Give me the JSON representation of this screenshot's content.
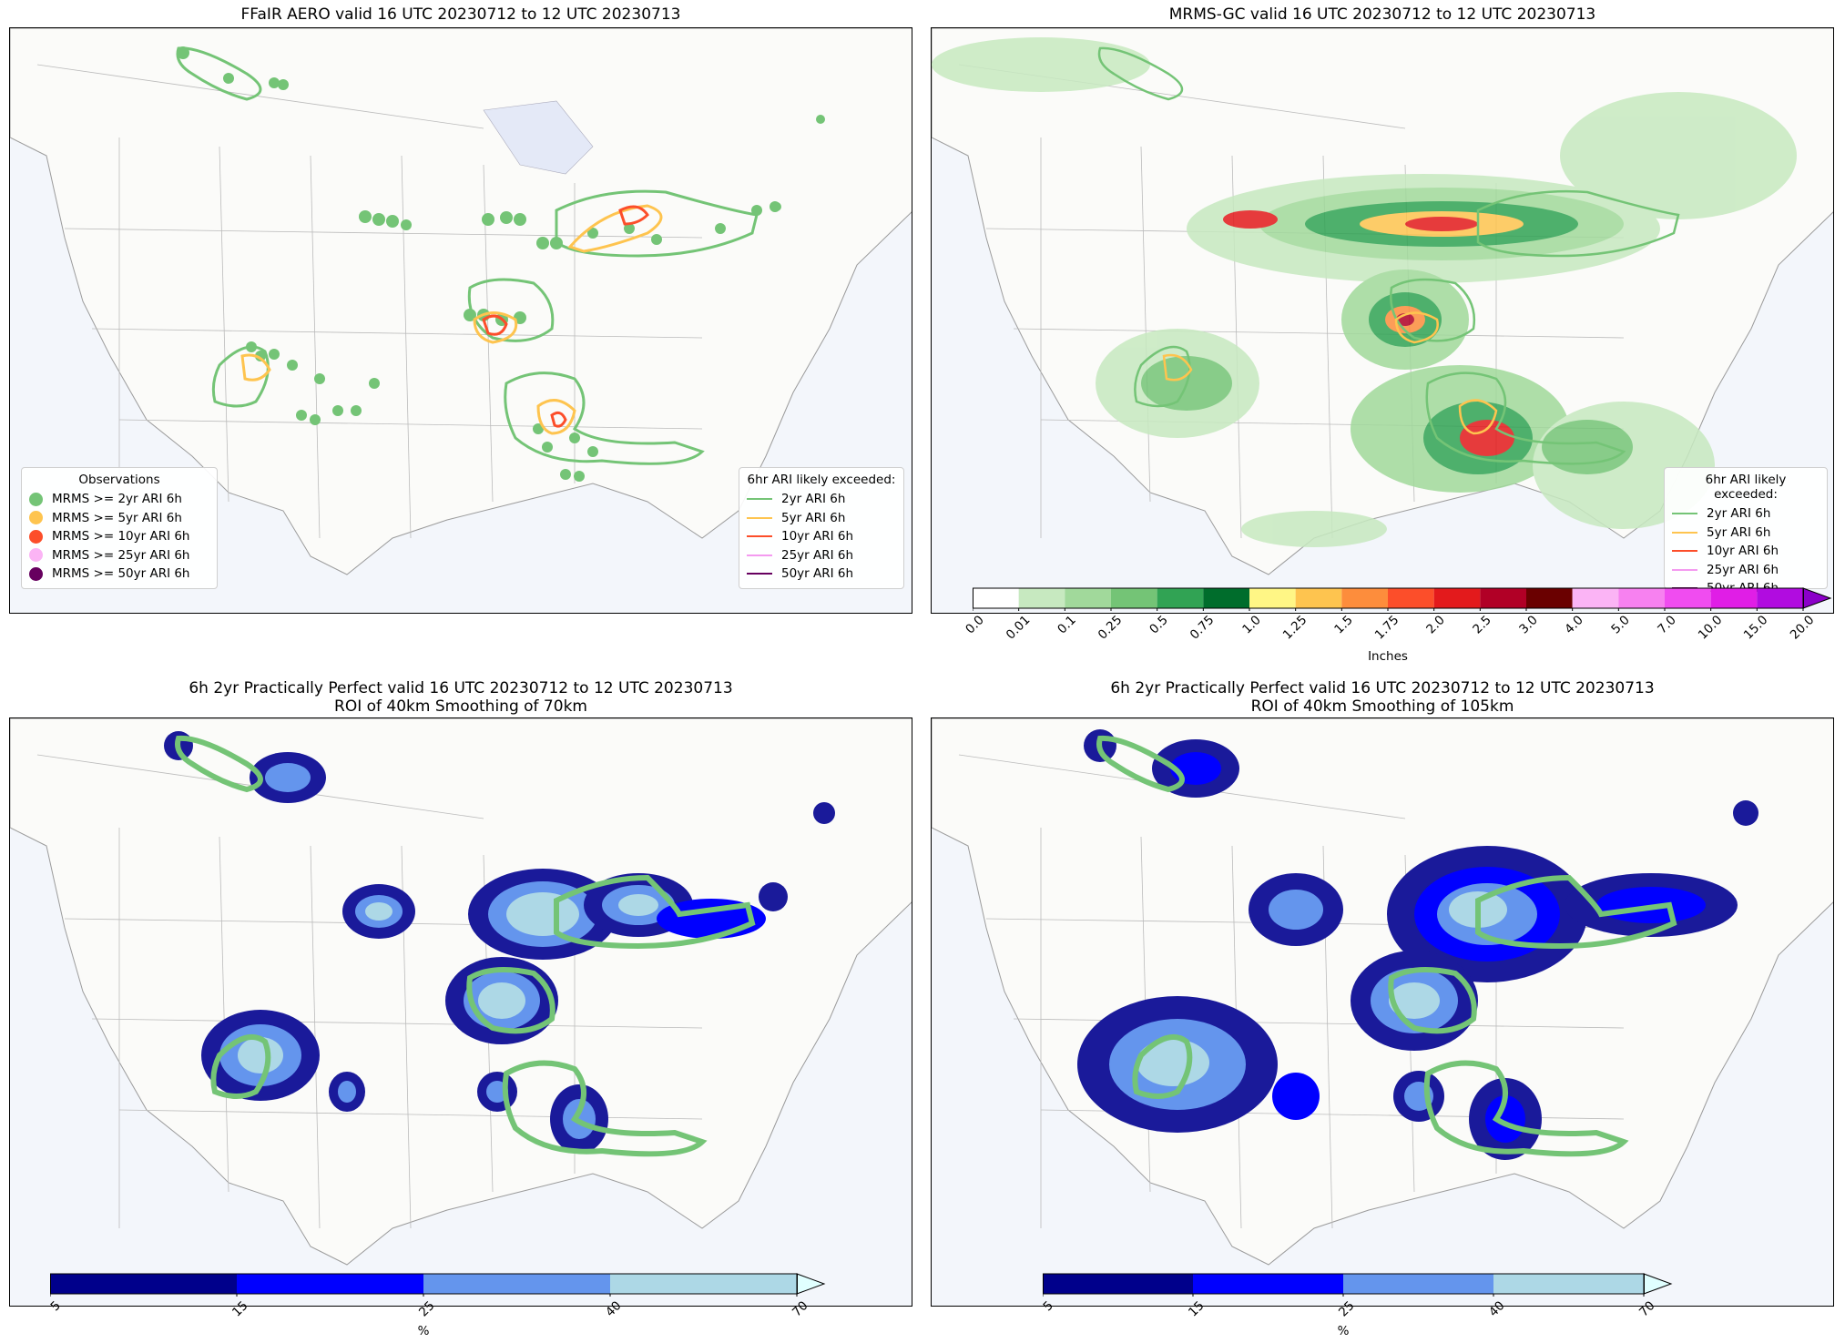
{
  "panels": [
    {
      "title": "FFaIR AERO valid 16 UTC 20230712 to 12 UTC 20230713"
    },
    {
      "title": "MRMS-GC valid 16 UTC 20230712 to 12 UTC 20230713"
    },
    {
      "title_line1": "6h 2yr Practically Perfect valid 16 UTC 20230712 to 12 UTC 20230713",
      "title_line2": "ROI of 40km Smoothing of 70km"
    },
    {
      "title_line1": "6h 2yr Practically Perfect valid 16 UTC 20230712 to 12 UTC 20230713",
      "title_line2": "ROI of 40km Smoothing of 105km"
    }
  ],
  "obs_legend": {
    "title": "Observations",
    "items": [
      {
        "label": "MRMS >= 2yr ARI 6h",
        "color": "#74c476"
      },
      {
        "label": "MRMS >= 5yr ARI 6h",
        "color": "#fec44f"
      },
      {
        "label": "MRMS >= 10yr ARI 6h",
        "color": "#fc4e2a"
      },
      {
        "label": "MRMS >= 25yr ARI 6h",
        "color": "#fbb4f5"
      },
      {
        "label": "MRMS >= 50yr ARI 6h",
        "color": "#67005f"
      }
    ]
  },
  "ari_legend": {
    "title": "6hr ARI likely exceeded:",
    "items": [
      {
        "label": "2yr ARI 6h",
        "color": "#74c476"
      },
      {
        "label": "5yr ARI 6h",
        "color": "#fec44f"
      },
      {
        "label": "10yr ARI 6h",
        "color": "#fc4e2a"
      },
      {
        "label": "25yr ARI 6h",
        "color": "#f49af0"
      },
      {
        "label": "50yr ARI 6h",
        "color": "#67005f"
      }
    ]
  },
  "precip_colorbar": {
    "label": "Inches",
    "ticks": [
      "0.0",
      "0.01",
      "0.1",
      "0.25",
      "0.5",
      "0.75",
      "1.0",
      "1.25",
      "1.5",
      "1.75",
      "2.0",
      "2.5",
      "3.0",
      "4.0",
      "5.0",
      "7.0",
      "10.0",
      "15.0",
      "20.0"
    ],
    "colors": [
      "#ffffff",
      "#c7e9c0",
      "#a1d99b",
      "#74c476",
      "#31a354",
      "#006d2c",
      "#fff685",
      "#fec44f",
      "#fd8d3c",
      "#fc4e2a",
      "#e31a1c",
      "#b10026",
      "#6a0000",
      "#fbb4f5",
      "#f781f0",
      "#f04cf0",
      "#e01ee6",
      "#b10ce0",
      "#8b00c9"
    ]
  },
  "pct_colorbar": {
    "label": "%",
    "ticks": [
      "5",
      "15",
      "25",
      "40",
      "70"
    ],
    "colors": [
      "#00008b",
      "#0000ff",
      "#6495ed",
      "#add8e6",
      "#e0ffff"
    ]
  }
}
